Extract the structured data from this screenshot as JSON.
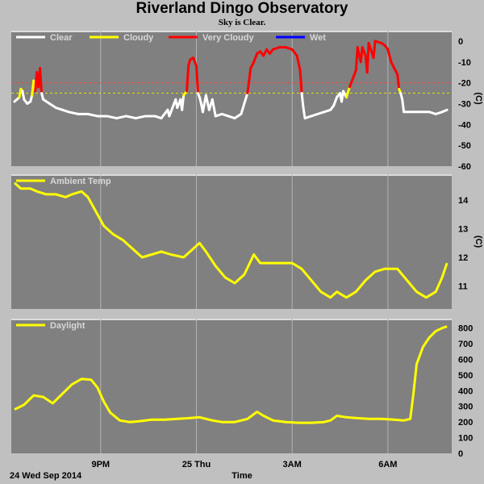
{
  "header": {
    "title": "Riverland Dingo Observatory",
    "subtitle": "Sky is Clear."
  },
  "footer": {
    "date_label": "24 Wed Sep 2014",
    "x_axis_label": "Time"
  },
  "x_ticks": [
    {
      "label": "9PM",
      "hour": 21
    },
    {
      "label": "25 Thu",
      "hour": 24
    },
    {
      "label": "3AM",
      "hour": 27
    },
    {
      "label": "6AM",
      "hour": 30
    }
  ],
  "colors": {
    "background": "#c0c0c0",
    "panel": "#808080",
    "grid": "#b4b4b4",
    "clear": "#ffffff",
    "cloudy": "#ffff00",
    "very_cloudy": "#ff0000",
    "wet": "#0000ff",
    "threshold_red": "#ff4040",
    "threshold_yellow": "#e0e000"
  },
  "chart_data": [
    {
      "type": "line",
      "panel": "sky",
      "legend": [
        {
          "label": "Clear",
          "color": "#ffffff"
        },
        {
          "label": "Cloudy",
          "color": "#ffff00"
        },
        {
          "label": "Very Cloudy",
          "color": "#ff0000"
        },
        {
          "label": "Wet",
          "color": "#0000ff"
        }
      ],
      "y_unit": "(C)",
      "ylim": [
        -60,
        5
      ],
      "y_ticks": [
        0,
        -10,
        -20,
        -30,
        -40,
        -50,
        -60
      ],
      "thresholds": [
        {
          "value": -20,
          "color": "#ff4040"
        },
        {
          "value": -25,
          "color": "#e0e000"
        }
      ],
      "xlim": [
        18.2,
        32
      ],
      "series": [
        {
          "points": [
            [
              18.3,
              -29
            ],
            [
              18.45,
              -27
            ],
            [
              18.5,
              -23
            ],
            [
              18.55,
              -24
            ],
            [
              18.6,
              -28
            ],
            [
              18.7,
              -30
            ],
            [
              18.8,
              -29
            ],
            [
              18.85,
              -26
            ],
            [
              18.9,
              -19
            ],
            [
              18.95,
              -24
            ],
            [
              19.0,
              -15
            ],
            [
              19.05,
              -22
            ],
            [
              19.1,
              -13
            ],
            [
              19.15,
              -25
            ],
            [
              19.2,
              -28
            ],
            [
              19.4,
              -30
            ],
            [
              19.6,
              -32
            ],
            [
              19.8,
              -33
            ],
            [
              20.0,
              -34
            ],
            [
              20.3,
              -35
            ],
            [
              20.6,
              -35
            ],
            [
              20.9,
              -36
            ],
            [
              21.2,
              -36
            ],
            [
              21.5,
              -37
            ],
            [
              21.8,
              -36
            ],
            [
              22.1,
              -37
            ],
            [
              22.4,
              -36
            ],
            [
              22.7,
              -36
            ],
            [
              22.9,
              -37
            ],
            [
              23.0,
              -35
            ],
            [
              23.1,
              -33
            ],
            [
              23.15,
              -36
            ],
            [
              23.2,
              -34
            ],
            [
              23.3,
              -30
            ],
            [
              23.35,
              -28
            ],
            [
              23.4,
              -32
            ],
            [
              23.5,
              -28
            ],
            [
              23.55,
              -33
            ],
            [
              23.6,
              -26
            ],
            [
              23.7,
              -24
            ],
            [
              23.75,
              -12
            ],
            [
              23.8,
              -9
            ],
            [
              23.9,
              -8
            ],
            [
              24.0,
              -12
            ],
            [
              24.05,
              -25
            ],
            [
              24.1,
              -27
            ],
            [
              24.15,
              -30
            ],
            [
              24.2,
              -34
            ],
            [
              24.3,
              -26
            ],
            [
              24.4,
              -33
            ],
            [
              24.5,
              -28
            ],
            [
              24.55,
              -32
            ],
            [
              24.6,
              -36
            ],
            [
              24.8,
              -35
            ],
            [
              25.0,
              -36
            ],
            [
              25.2,
              -37
            ],
            [
              25.4,
              -35
            ],
            [
              25.5,
              -30
            ],
            [
              25.6,
              -25
            ],
            [
              25.7,
              -13
            ],
            [
              25.8,
              -10
            ],
            [
              25.9,
              -6
            ],
            [
              26.0,
              -5
            ],
            [
              26.1,
              -7
            ],
            [
              26.2,
              -4
            ],
            [
              26.3,
              -6
            ],
            [
              26.4,
              -4
            ],
            [
              26.6,
              -3
            ],
            [
              26.8,
              -3
            ],
            [
              27.0,
              -4
            ],
            [
              27.15,
              -7
            ],
            [
              27.25,
              -14
            ],
            [
              27.3,
              -25
            ],
            [
              27.35,
              -32
            ],
            [
              27.4,
              -37
            ],
            [
              27.6,
              -36
            ],
            [
              27.8,
              -35
            ],
            [
              28.0,
              -34
            ],
            [
              28.2,
              -33
            ],
            [
              28.3,
              -31
            ],
            [
              28.4,
              -27
            ],
            [
              28.5,
              -25
            ],
            [
              28.55,
              -29
            ],
            [
              28.6,
              -24
            ],
            [
              28.7,
              -27
            ],
            [
              28.8,
              -22
            ],
            [
              29.0,
              -14
            ],
            [
              29.05,
              -3
            ],
            [
              29.15,
              -10
            ],
            [
              29.2,
              -3
            ],
            [
              29.3,
              -7
            ],
            [
              29.35,
              -15
            ],
            [
              29.4,
              -1
            ],
            [
              29.55,
              -8
            ],
            [
              29.6,
              0
            ],
            [
              29.8,
              -1
            ],
            [
              29.9,
              -2
            ],
            [
              30.0,
              -4
            ],
            [
              30.1,
              -10
            ],
            [
              30.2,
              -13
            ],
            [
              30.3,
              -16
            ],
            [
              30.35,
              -23
            ],
            [
              30.4,
              -25
            ],
            [
              30.45,
              -28
            ],
            [
              30.5,
              -34
            ],
            [
              30.7,
              -34
            ],
            [
              30.9,
              -34
            ],
            [
              31.1,
              -34
            ],
            [
              31.3,
              -34
            ],
            [
              31.5,
              -35
            ],
            [
              31.7,
              -34
            ],
            [
              31.85,
              -33
            ]
          ]
        }
      ]
    },
    {
      "type": "line",
      "panel": "ambient",
      "legend": [
        {
          "label": "Ambient Temp",
          "color": "#ffff00"
        }
      ],
      "y_unit": "(C)",
      "ylim": [
        10.2,
        14.9
      ],
      "y_ticks": [
        11,
        12,
        13,
        14
      ],
      "xlim": [
        18.2,
        32
      ],
      "series": [
        {
          "name": "Ambient Temp",
          "color": "#ffff00",
          "points": [
            [
              18.3,
              14.6
            ],
            [
              18.5,
              14.4
            ],
            [
              18.8,
              14.4
            ],
            [
              19.0,
              14.3
            ],
            [
              19.3,
              14.2
            ],
            [
              19.6,
              14.2
            ],
            [
              19.9,
              14.1
            ],
            [
              20.1,
              14.2
            ],
            [
              20.4,
              14.3
            ],
            [
              20.6,
              14.1
            ],
            [
              20.8,
              13.7
            ],
            [
              21.1,
              13.1
            ],
            [
              21.4,
              12.8
            ],
            [
              21.7,
              12.6
            ],
            [
              22.0,
              12.3
            ],
            [
              22.3,
              12.0
            ],
            [
              22.6,
              12.1
            ],
            [
              22.9,
              12.2
            ],
            [
              23.2,
              12.1
            ],
            [
              23.6,
              12.0
            ],
            [
              23.9,
              12.3
            ],
            [
              24.1,
              12.5
            ],
            [
              24.3,
              12.2
            ],
            [
              24.6,
              11.7
            ],
            [
              24.9,
              11.3
            ],
            [
              25.2,
              11.1
            ],
            [
              25.5,
              11.4
            ],
            [
              25.8,
              12.1
            ],
            [
              26.0,
              11.8
            ],
            [
              26.3,
              11.8
            ],
            [
              26.6,
              11.8
            ],
            [
              27.0,
              11.8
            ],
            [
              27.3,
              11.6
            ],
            [
              27.6,
              11.2
            ],
            [
              27.9,
              10.8
            ],
            [
              28.2,
              10.6
            ],
            [
              28.4,
              10.8
            ],
            [
              28.7,
              10.6
            ],
            [
              29.0,
              10.8
            ],
            [
              29.3,
              11.2
            ],
            [
              29.6,
              11.5
            ],
            [
              29.9,
              11.6
            ],
            [
              30.3,
              11.6
            ],
            [
              30.6,
              11.2
            ],
            [
              30.9,
              10.8
            ],
            [
              31.2,
              10.6
            ],
            [
              31.5,
              10.8
            ],
            [
              31.7,
              11.3
            ],
            [
              31.85,
              11.8
            ]
          ]
        }
      ]
    },
    {
      "type": "line",
      "panel": "daylight",
      "legend": [
        {
          "label": "Daylight",
          "color": "#ffff00"
        }
      ],
      "y_ticks": [
        0,
        100,
        200,
        300,
        400,
        500,
        600,
        700,
        800
      ],
      "ylim": [
        0,
        860
      ],
      "xlim": [
        18.2,
        32
      ],
      "series": [
        {
          "name": "Daylight",
          "color": "#ffff00",
          "points": [
            [
              18.3,
              280
            ],
            [
              18.6,
              310
            ],
            [
              18.9,
              370
            ],
            [
              19.2,
              360
            ],
            [
              19.5,
              320
            ],
            [
              19.8,
              380
            ],
            [
              20.1,
              440
            ],
            [
              20.4,
              475
            ],
            [
              20.7,
              470
            ],
            [
              20.9,
              420
            ],
            [
              21.1,
              330
            ],
            [
              21.3,
              260
            ],
            [
              21.6,
              210
            ],
            [
              21.9,
              200
            ],
            [
              22.2,
              205
            ],
            [
              22.6,
              215
            ],
            [
              23.0,
              215
            ],
            [
              23.4,
              220
            ],
            [
              23.8,
              225
            ],
            [
              24.1,
              230
            ],
            [
              24.5,
              210
            ],
            [
              24.8,
              200
            ],
            [
              25.2,
              200
            ],
            [
              25.6,
              220
            ],
            [
              25.9,
              265
            ],
            [
              26.1,
              240
            ],
            [
              26.4,
              210
            ],
            [
              26.8,
              200
            ],
            [
              27.2,
              195
            ],
            [
              27.6,
              195
            ],
            [
              28.0,
              200
            ],
            [
              28.2,
              210
            ],
            [
              28.4,
              240
            ],
            [
              28.7,
              230
            ],
            [
              29.0,
              225
            ],
            [
              29.4,
              220
            ],
            [
              29.8,
              220
            ],
            [
              30.2,
              215
            ],
            [
              30.5,
              210
            ],
            [
              30.7,
              220
            ],
            [
              30.8,
              380
            ],
            [
              30.9,
              570
            ],
            [
              31.1,
              680
            ],
            [
              31.3,
              740
            ],
            [
              31.5,
              780
            ],
            [
              31.7,
              800
            ],
            [
              31.85,
              810
            ]
          ]
        }
      ]
    }
  ]
}
